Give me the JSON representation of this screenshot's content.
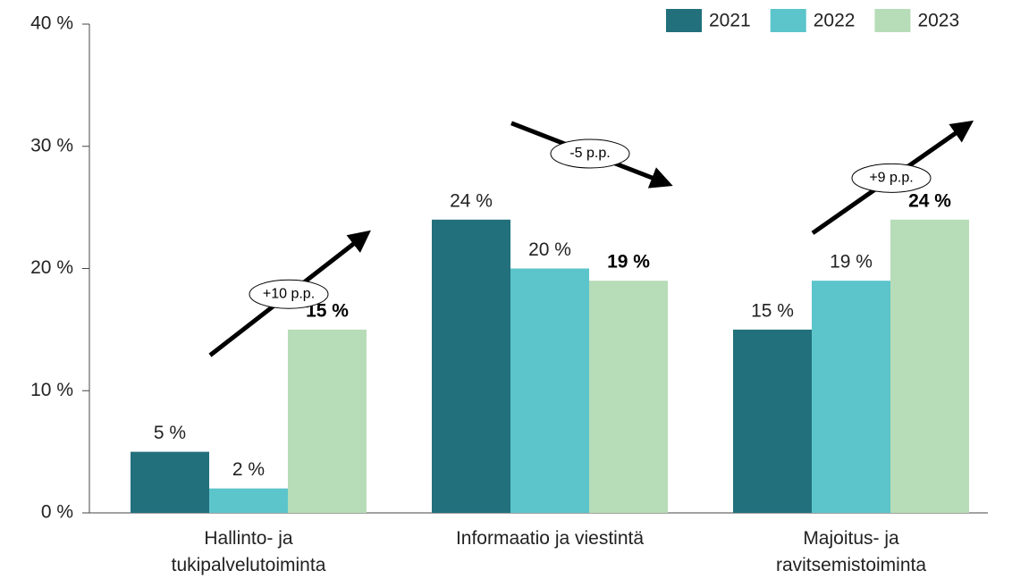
{
  "chart_data": {
    "type": "bar",
    "categories": [
      "Hallinto- ja tukipalvelutoiminta",
      "Informaatio ja viestintä",
      "Majoitus- ja ravitsemistoiminta"
    ],
    "series": [
      {
        "name": "2021",
        "color": "#22707c",
        "values": [
          5,
          24,
          15
        ],
        "value_labels": [
          "5 %",
          "24 %",
          "15 %"
        ]
      },
      {
        "name": "2022",
        "color": "#5bc5cb",
        "values": [
          2,
          20,
          19
        ],
        "value_labels": [
          "2 %",
          "20 %",
          "19 %"
        ]
      },
      {
        "name": "2023",
        "color": "#b7dcb8",
        "values": [
          15,
          19,
          24
        ],
        "value_labels": [
          "15 %",
          "19 %",
          "24 %"
        ]
      }
    ],
    "annotations": [
      "+10 p.p.",
      "-5 p.p.",
      "+9 p.p."
    ],
    "ylim": [
      0,
      40
    ],
    "yticks": [
      {
        "value": 0,
        "label": "0 %"
      },
      {
        "value": 10,
        "label": "10 %"
      },
      {
        "value": 20,
        "label": "20 %"
      },
      {
        "value": 30,
        "label": "30 %"
      },
      {
        "value": 40,
        "label": "40 %"
      }
    ],
    "legend": "top-right"
  }
}
